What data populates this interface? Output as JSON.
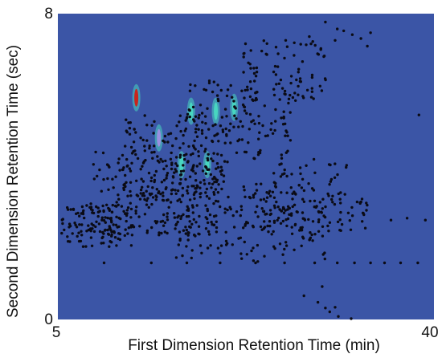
{
  "chart_data": {
    "type": "scatter",
    "title": "",
    "xlabel": "First Dimension Retention Time (min)",
    "ylabel": "Second Dimension Retention Time (sec)",
    "xlim": [
      5,
      40
    ],
    "ylim": [
      0,
      8
    ],
    "x_tick_labels": [
      "5",
      "40"
    ],
    "y_tick_labels": [
      "0",
      "8"
    ],
    "grid": false,
    "legend": "none",
    "colors": {
      "background": "#3b55a6",
      "points": "#0b0b14",
      "hotspot_high": "#c8241c",
      "hotspot_mid": "#48d6c0",
      "hotspot_low": "#9a8fe0"
    },
    "hotspots": [
      {
        "x": 12.3,
        "y": 5.8,
        "intensity": "high"
      },
      {
        "x": 14.4,
        "y": 4.75,
        "intensity": "low"
      },
      {
        "x": 17.4,
        "y": 5.45,
        "intensity": "mid"
      },
      {
        "x": 19.7,
        "y": 5.45,
        "intensity": "mid"
      },
      {
        "x": 21.4,
        "y": 5.55,
        "intensity": "mid"
      },
      {
        "x": 16.5,
        "y": 4.05,
        "intensity": "mid"
      },
      {
        "x": 18.9,
        "y": 4.05,
        "intensity": "mid"
      }
    ],
    "clusters": [
      {
        "x_range": [
          5.3,
          12
        ],
        "y_range": [
          1.9,
          3.0
        ],
        "count": 120
      },
      {
        "x_range": [
          8,
          20
        ],
        "y_range": [
          2.2,
          4.4
        ],
        "count": 200
      },
      {
        "x_range": [
          11,
          21
        ],
        "y_range": [
          3.3,
          5.4
        ],
        "count": 150
      },
      {
        "x_range": [
          17,
          27
        ],
        "y_range": [
          4.2,
          6.3
        ],
        "count": 130
      },
      {
        "x_range": [
          22,
          30
        ],
        "y_range": [
          5.7,
          7.3
        ],
        "count": 80
      },
      {
        "x_range": [
          12,
          28
        ],
        "y_range": [
          2.4,
          3.6
        ],
        "count": 150
      },
      {
        "x_range": [
          24,
          34
        ],
        "y_range": [
          2.3,
          3.2
        ],
        "count": 90
      },
      {
        "x_range": [
          16,
          30
        ],
        "y_range": [
          1.5,
          2.4
        ],
        "count": 70
      },
      {
        "x_range": [
          25,
          32
        ],
        "y_range": [
          3.2,
          4.2
        ],
        "count": 40
      }
    ],
    "points": [
      [
        32.4,
        7.45
      ],
      [
        33.2,
        7.35
      ],
      [
        31.6,
        7.55
      ],
      [
        30.8,
        7.3
      ],
      [
        29.9,
        7.78
      ],
      [
        31.0,
        7.6
      ],
      [
        34.1,
        7.5
      ],
      [
        33.8,
        7.15
      ],
      [
        27.6,
        7.2
      ],
      [
        28.4,
        7.4
      ],
      [
        26.2,
        7.3
      ],
      [
        25.5,
        6.95
      ],
      [
        38.6,
        5.35
      ],
      [
        36.0,
        2.6
      ],
      [
        37.5,
        2.65
      ],
      [
        39.2,
        2.6
      ],
      [
        9.3,
        1.48
      ],
      [
        13.7,
        1.48
      ],
      [
        17.0,
        1.48
      ],
      [
        20.1,
        1.48
      ],
      [
        23.4,
        1.48
      ],
      [
        26.1,
        1.48
      ],
      [
        28.9,
        1.48
      ],
      [
        31.0,
        1.48
      ],
      [
        32.6,
        1.48
      ],
      [
        34.1,
        1.48
      ],
      [
        35.4,
        1.48
      ],
      [
        36.9,
        1.48
      ],
      [
        38.5,
        1.48
      ],
      [
        27.9,
        0.62
      ],
      [
        29.2,
        0.45
      ],
      [
        29.9,
        0.3
      ],
      [
        30.3,
        0.2
      ],
      [
        31.1,
        0.08
      ],
      [
        32.3,
        0.02
      ],
      [
        29.6,
        0.86
      ],
      [
        30.8,
        0.32
      ]
    ]
  }
}
